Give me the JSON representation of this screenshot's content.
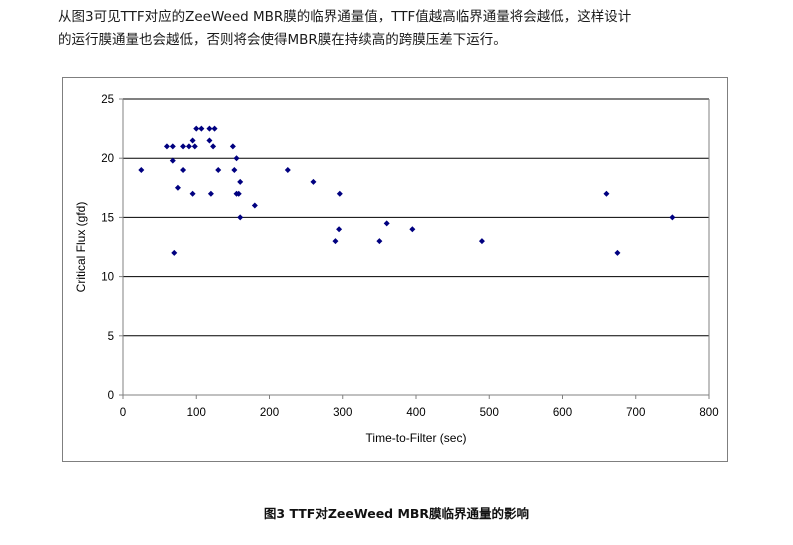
{
  "text": {
    "line1": "从图3可见TTF对应的ZeeWeed MBR膜的临界通量值，TTF值越高临界通量将会越低，这样设计",
    "line2": "的运行膜通量也会越低，否则将会使得MBR膜在持续高的跨膜压差下运行。"
  },
  "caption": "图3 TTF对ZeeWeed MBR膜临界通量的影响",
  "colors": {
    "marker": "#000080",
    "gridline": "#000000",
    "axis": "#808080",
    "text": "#000000"
  },
  "chart_data": {
    "type": "scatter",
    "title": "",
    "xlabel": "Time-to-Filter (sec)",
    "ylabel": "Critical Flux (gfd)",
    "xlim": [
      0,
      800
    ],
    "ylim": [
      0,
      25
    ],
    "xticks": [
      "0",
      "100",
      "200",
      "300",
      "400",
      "500",
      "600",
      "700",
      "800"
    ],
    "yticks": [
      "0",
      "5",
      "10",
      "15",
      "20",
      "25"
    ],
    "grid": "horizontal",
    "legend": "none",
    "points": [
      {
        "x": 25,
        "y": 19
      },
      {
        "x": 60,
        "y": 21
      },
      {
        "x": 68,
        "y": 21
      },
      {
        "x": 68,
        "y": 19.8
      },
      {
        "x": 70,
        "y": 12
      },
      {
        "x": 75,
        "y": 17.5
      },
      {
        "x": 82,
        "y": 21
      },
      {
        "x": 82,
        "y": 19
      },
      {
        "x": 90,
        "y": 21
      },
      {
        "x": 95,
        "y": 21.5
      },
      {
        "x": 95,
        "y": 17
      },
      {
        "x": 98,
        "y": 21
      },
      {
        "x": 100,
        "y": 22.5
      },
      {
        "x": 107,
        "y": 22.5
      },
      {
        "x": 118,
        "y": 22.5
      },
      {
        "x": 118,
        "y": 21.5
      },
      {
        "x": 120,
        "y": 17
      },
      {
        "x": 123,
        "y": 21
      },
      {
        "x": 125,
        "y": 22.5
      },
      {
        "x": 130,
        "y": 19
      },
      {
        "x": 150,
        "y": 21
      },
      {
        "x": 152,
        "y": 19
      },
      {
        "x": 155,
        "y": 20
      },
      {
        "x": 155,
        "y": 17
      },
      {
        "x": 158,
        "y": 17
      },
      {
        "x": 160,
        "y": 18
      },
      {
        "x": 160,
        "y": 15
      },
      {
        "x": 180,
        "y": 16
      },
      {
        "x": 225,
        "y": 19
      },
      {
        "x": 260,
        "y": 18
      },
      {
        "x": 290,
        "y": 13
      },
      {
        "x": 295,
        "y": 14
      },
      {
        "x": 296,
        "y": 17
      },
      {
        "x": 350,
        "y": 13
      },
      {
        "x": 360,
        "y": 14.5
      },
      {
        "x": 395,
        "y": 14
      },
      {
        "x": 490,
        "y": 13
      },
      {
        "x": 660,
        "y": 17
      },
      {
        "x": 675,
        "y": 12
      },
      {
        "x": 750,
        "y": 15
      }
    ]
  }
}
